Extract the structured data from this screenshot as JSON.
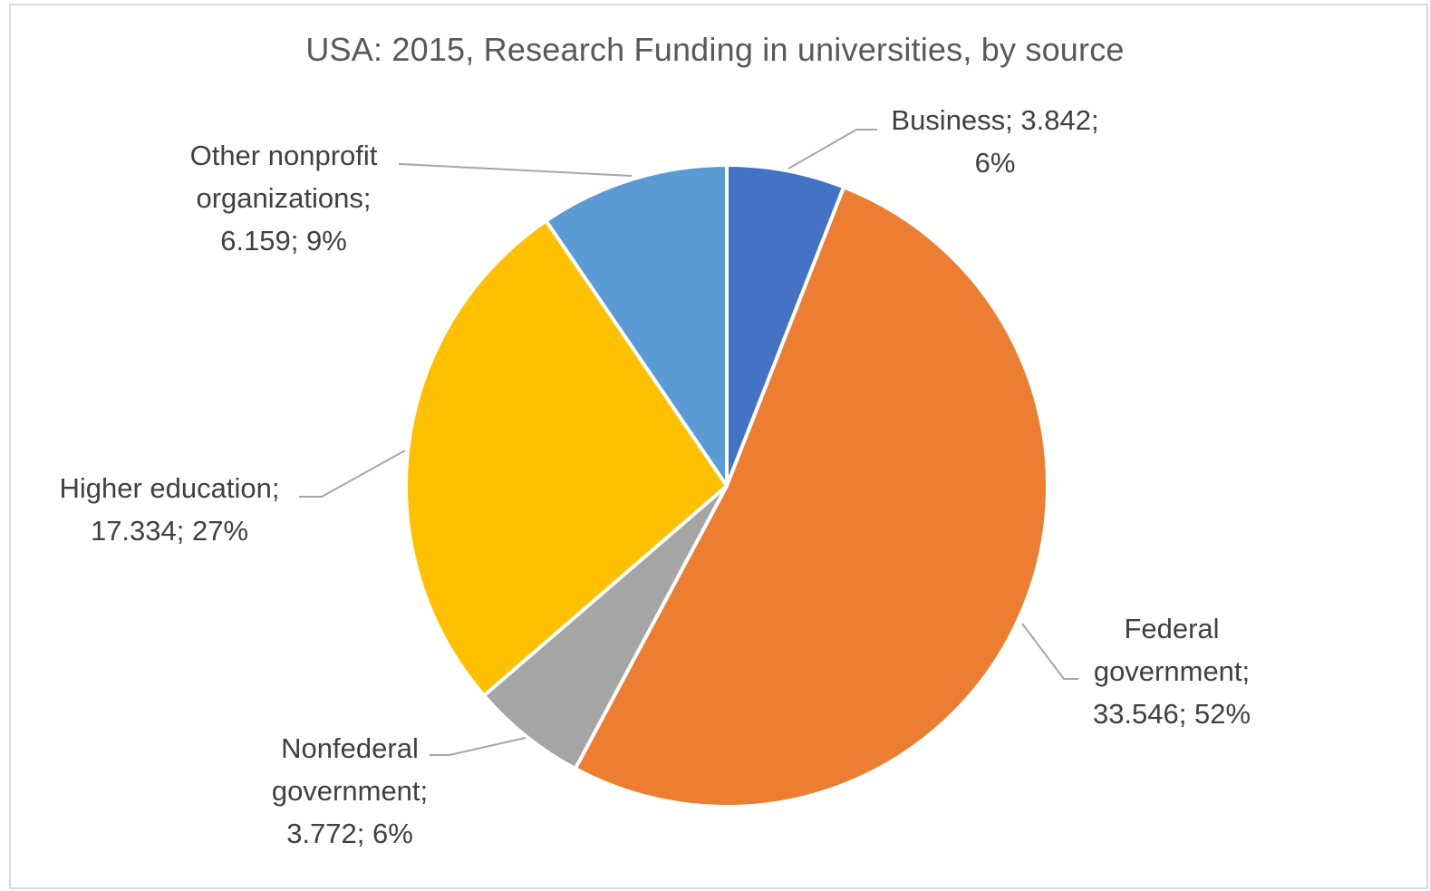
{
  "chart_data": {
    "type": "pie",
    "title": "USA: 2015, Research Funding in universities, by source",
    "slices": [
      {
        "name": "Business",
        "value": 3.842,
        "percent_label": "6%",
        "color": "#4472C4",
        "label_lines": [
          "Business; 3.842;",
          "6%"
        ]
      },
      {
        "name": "Federal government",
        "value": 33.546,
        "percent_label": "52%",
        "color": "#ED7D31",
        "label_lines": [
          "Federal",
          "government;",
          "33.546; 52%"
        ]
      },
      {
        "name": "Nonfederal government",
        "value": 3.772,
        "percent_label": "6%",
        "color": "#A5A5A5",
        "label_lines": [
          "Nonfederal",
          "government;",
          "3.772; 6%"
        ]
      },
      {
        "name": "Higher education",
        "value": 17.334,
        "percent_label": "27%",
        "color": "#FFC000",
        "label_lines": [
          "Higher education;",
          "17.334; 27%"
        ]
      },
      {
        "name": "Other nonprofit organizations",
        "value": 6.159,
        "percent_label": "9%",
        "color": "#5B9BD5",
        "label_lines": [
          "Other nonprofit",
          "organizations;",
          "6.159; 9%"
        ]
      }
    ],
    "start_angle_deg": 0,
    "direction": "clockwise",
    "legend": "none",
    "data_labels": "outside-with-leader-lines"
  }
}
